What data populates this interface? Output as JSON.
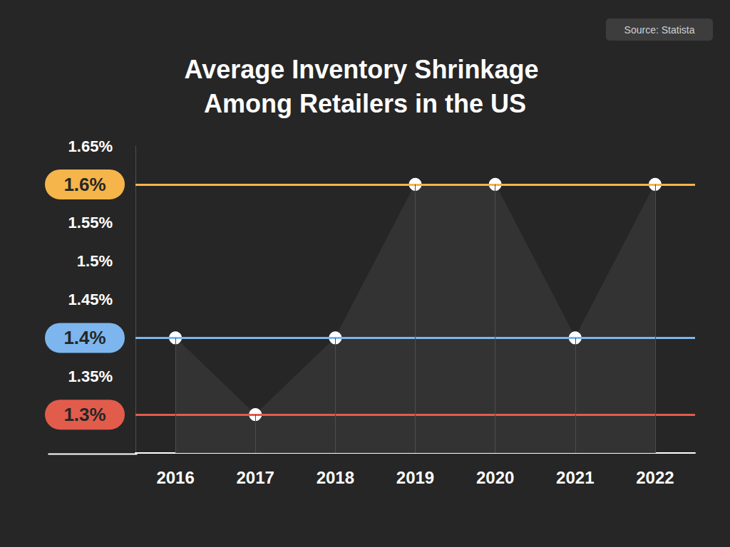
{
  "chart_data": {
    "type": "line",
    "title": "Average Inventory Shrinkage Among Retailers in the US",
    "source": "Source: Statista",
    "categories": [
      "2016",
      "2017",
      "2018",
      "2019",
      "2020",
      "2021",
      "2022"
    ],
    "values": [
      1.4,
      1.3,
      1.4,
      1.6,
      1.6,
      1.4,
      1.6
    ],
    "color": "#ffffff",
    "marker": "circle",
    "ylim": [
      1.25,
      1.65
    ],
    "yticks": [
      {
        "value": 1.3,
        "label": "1.3%"
      },
      {
        "value": 1.35,
        "label": "1.35%"
      },
      {
        "value": 1.4,
        "label": "1.4%"
      },
      {
        "value": 1.45,
        "label": "1.45%"
      },
      {
        "value": 1.5,
        "label": "1.5%"
      },
      {
        "value": 1.55,
        "label": "1.55%"
      },
      {
        "value": 1.6,
        "label": "1.6%"
      },
      {
        "value": 1.65,
        "label": "1.65%"
      }
    ],
    "highlights": [
      {
        "value": 1.6,
        "color": "#f5b54a"
      },
      {
        "value": 1.4,
        "color": "#7db6ee"
      },
      {
        "value": 1.3,
        "color": "#e25c4c"
      }
    ],
    "grid": false
  }
}
